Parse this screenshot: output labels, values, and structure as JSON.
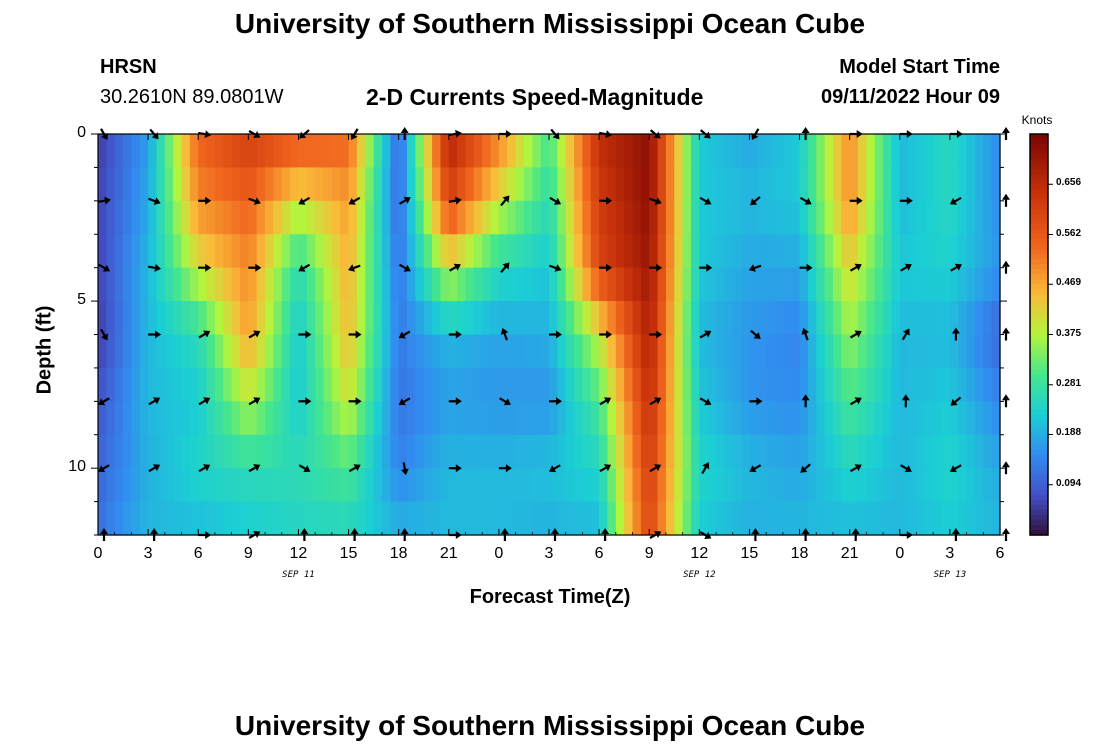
{
  "header": {
    "title": "University of Southern Mississippi Ocean Cube",
    "station": "HRSN",
    "coords": "30.2610N  89.0801W",
    "subtitle": "2-D Currents Speed-Magnitude",
    "model_label": "Model Start Time",
    "model_time": "09/11/2022 Hour 09"
  },
  "footer": {
    "title": "University of Southern Mississippi Ocean Cube"
  },
  "colors": {
    "arrow": "#000000",
    "axis": "#000000"
  },
  "chart_data": {
    "type": "heatmap",
    "title": "2-D Currents Speed-Magnitude",
    "xlabel": "Forecast Time(Z)",
    "ylabel": "Depth (ft)",
    "x_tick_labels": [
      "0",
      "3",
      "6",
      "9",
      "12",
      "15",
      "18",
      "21",
      "0",
      "3",
      "6",
      "9",
      "12",
      "15",
      "18",
      "21",
      "0",
      "3",
      "6"
    ],
    "x_range_hours": [
      0,
      54
    ],
    "date_labels": [
      {
        "label": "SEP 11",
        "hour": 12
      },
      {
        "label": "SEP 12",
        "hour": 36
      },
      {
        "label": "SEP 13",
        "hour": 51
      }
    ],
    "y_tick_labels": [
      "0",
      "5",
      "10"
    ],
    "y_ticks": [
      0,
      5,
      10
    ],
    "ylim": [
      0,
      12
    ],
    "colorbar": {
      "label": "Knots",
      "ticks": [
        "0.656",
        "0.562",
        "0.469",
        "0.375",
        "0.281",
        "0.188",
        "0.094"
      ],
      "tick_values": [
        0.656,
        0.562,
        0.469,
        0.375,
        0.281,
        0.188,
        0.094
      ],
      "range": [
        0,
        0.75
      ]
    },
    "depths_ft": [
      0,
      2,
      4,
      6,
      8,
      10,
      12
    ],
    "hours": [
      0,
      3,
      6,
      9,
      12,
      15,
      18,
      21,
      24,
      27,
      30,
      33,
      36,
      39,
      42,
      45,
      48,
      51,
      54
    ],
    "speed_knots": [
      [
        0.05,
        0.17,
        0.55,
        0.62,
        0.58,
        0.55,
        0.1,
        0.68,
        0.52,
        0.3,
        0.65,
        0.72,
        0.22,
        0.18,
        0.22,
        0.5,
        0.2,
        0.25,
        0.15
      ],
      [
        0.06,
        0.18,
        0.5,
        0.55,
        0.4,
        0.48,
        0.1,
        0.6,
        0.4,
        0.26,
        0.62,
        0.72,
        0.22,
        0.2,
        0.22,
        0.5,
        0.2,
        0.25,
        0.15
      ],
      [
        0.06,
        0.2,
        0.4,
        0.5,
        0.26,
        0.46,
        0.12,
        0.4,
        0.25,
        0.22,
        0.6,
        0.7,
        0.22,
        0.18,
        0.18,
        0.42,
        0.22,
        0.23,
        0.16
      ],
      [
        0.05,
        0.2,
        0.26,
        0.48,
        0.22,
        0.45,
        0.13,
        0.2,
        0.18,
        0.19,
        0.4,
        0.68,
        0.2,
        0.16,
        0.14,
        0.36,
        0.2,
        0.2,
        0.1
      ],
      [
        0.08,
        0.2,
        0.22,
        0.38,
        0.22,
        0.4,
        0.12,
        0.17,
        0.16,
        0.16,
        0.3,
        0.65,
        0.22,
        0.16,
        0.15,
        0.3,
        0.2,
        0.22,
        0.14
      ],
      [
        0.1,
        0.19,
        0.24,
        0.26,
        0.26,
        0.3,
        0.14,
        0.2,
        0.2,
        0.21,
        0.24,
        0.62,
        0.24,
        0.2,
        0.18,
        0.24,
        0.2,
        0.24,
        0.18
      ],
      [
        0.12,
        0.2,
        0.2,
        0.22,
        0.24,
        0.24,
        0.2,
        0.2,
        0.2,
        0.19,
        0.2,
        0.6,
        0.22,
        0.19,
        0.2,
        0.2,
        0.2,
        0.22,
        0.2
      ]
    ],
    "direction_deg": [
      [
        150,
        140,
        100,
        120,
        230,
        210,
        0,
        80,
        90,
        140,
        100,
        130,
        130,
        210,
        0,
        90,
        90,
        90,
        0
      ],
      [
        80,
        110,
        90,
        110,
        240,
        240,
        60,
        80,
        40,
        120,
        90,
        110,
        120,
        230,
        120,
        90,
        90,
        240,
        0
      ],
      [
        120,
        100,
        90,
        90,
        240,
        250,
        120,
        60,
        40,
        110,
        90,
        90,
        90,
        250,
        90,
        60,
        60,
        60,
        0
      ],
      [
        150,
        90,
        60,
        60,
        90,
        90,
        240,
        90,
        340,
        90,
        90,
        90,
        60,
        130,
        340,
        60,
        30,
        0,
        0
      ],
      [
        240,
        60,
        60,
        60,
        90,
        90,
        240,
        90,
        120,
        90,
        60,
        60,
        120,
        90,
        0,
        60,
        0,
        230,
        0
      ],
      [
        240,
        60,
        60,
        60,
        120,
        60,
        170,
        90,
        90,
        240,
        60,
        60,
        30,
        240,
        230,
        60,
        120,
        240,
        0
      ],
      [
        0,
        0,
        90,
        60,
        0,
        0,
        0,
        90,
        0,
        0,
        0,
        60,
        120,
        0,
        0,
        0,
        90,
        0,
        0
      ]
    ]
  }
}
